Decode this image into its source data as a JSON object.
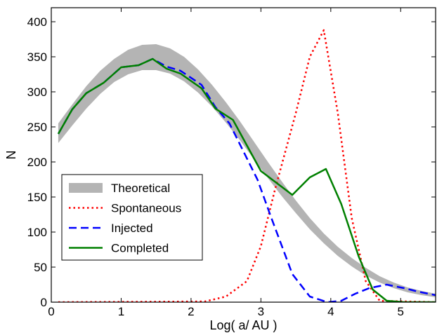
{
  "chart_data": {
    "type": "line",
    "xlabel": "Log( a/ AU )",
    "ylabel": "N",
    "xlim": [
      0,
      5.5
    ],
    "ylim": [
      0,
      420
    ],
    "xticks": [
      0,
      1,
      2,
      3,
      4,
      5
    ],
    "yticks": [
      0,
      50,
      100,
      150,
      200,
      250,
      300,
      350,
      400
    ],
    "grid": false,
    "legend_position": "center-left",
    "band": {
      "name": "Theoretical",
      "color": "#b4b4b4",
      "x": [
        0.1,
        0.3,
        0.5,
        0.7,
        0.9,
        1.1,
        1.3,
        1.5,
        1.7,
        1.9,
        2.1,
        2.3,
        2.5,
        2.7,
        2.9,
        3.1,
        3.3,
        3.5,
        3.7,
        3.9,
        4.1,
        4.3,
        4.5,
        4.7,
        4.9,
        5.1,
        5.3,
        5.5
      ],
      "upper": [
        255,
        282,
        308,
        330,
        347,
        360,
        367,
        368,
        362,
        350,
        332,
        310,
        285,
        258,
        229,
        200,
        172,
        145,
        120,
        98,
        79,
        63,
        49,
        37,
        28,
        21,
        16,
        12
      ],
      "lower": [
        227,
        252,
        276,
        297,
        314,
        325,
        331,
        331,
        326,
        315,
        299,
        279,
        256,
        231,
        204,
        177,
        151,
        127,
        104,
        84,
        66,
        51,
        38,
        28,
        20,
        14,
        10,
        7
      ]
    },
    "series": [
      {
        "name": "Spontaneous",
        "color": "#ff0000",
        "style": "dotted",
        "x": [
          0.1,
          2.2,
          2.5,
          2.8,
          3.0,
          3.2,
          3.5,
          3.7,
          3.9,
          4.1,
          4.3,
          4.5,
          4.7,
          5.5
        ],
        "y": [
          0,
          1,
          8,
          30,
          80,
          160,
          270,
          350,
          388,
          270,
          120,
          30,
          2,
          0
        ]
      },
      {
        "name": "Injected",
        "color": "#0000ff",
        "style": "dashed",
        "x": [
          0.1,
          0.3,
          0.5,
          0.75,
          1.0,
          1.25,
          1.45,
          1.65,
          1.85,
          2.15,
          2.35,
          2.55,
          2.75,
          2.95,
          3.15,
          3.45,
          3.7,
          3.95,
          4.15,
          4.35,
          4.55,
          4.8,
          5.05,
          5.25,
          5.5
        ],
        "y": [
          240,
          275,
          298,
          313,
          335,
          338,
          347,
          336,
          330,
          310,
          278,
          255,
          215,
          175,
          120,
          40,
          8,
          0,
          2,
          12,
          20,
          25,
          20,
          15,
          10
        ]
      },
      {
        "name": "Completed",
        "color": "#008000",
        "style": "solid",
        "x": [
          0.1,
          0.3,
          0.5,
          0.75,
          1.0,
          1.25,
          1.45,
          1.65,
          1.85,
          2.15,
          2.35,
          2.6,
          3.0,
          3.45,
          3.7,
          3.93,
          4.15,
          4.4,
          4.6,
          4.8,
          5.05,
          5.5
        ],
        "y": [
          240,
          275,
          298,
          313,
          335,
          338,
          347,
          333,
          326,
          305,
          276,
          260,
          187,
          153,
          178,
          190,
          140,
          65,
          18,
          2,
          0,
          0
        ]
      }
    ]
  }
}
